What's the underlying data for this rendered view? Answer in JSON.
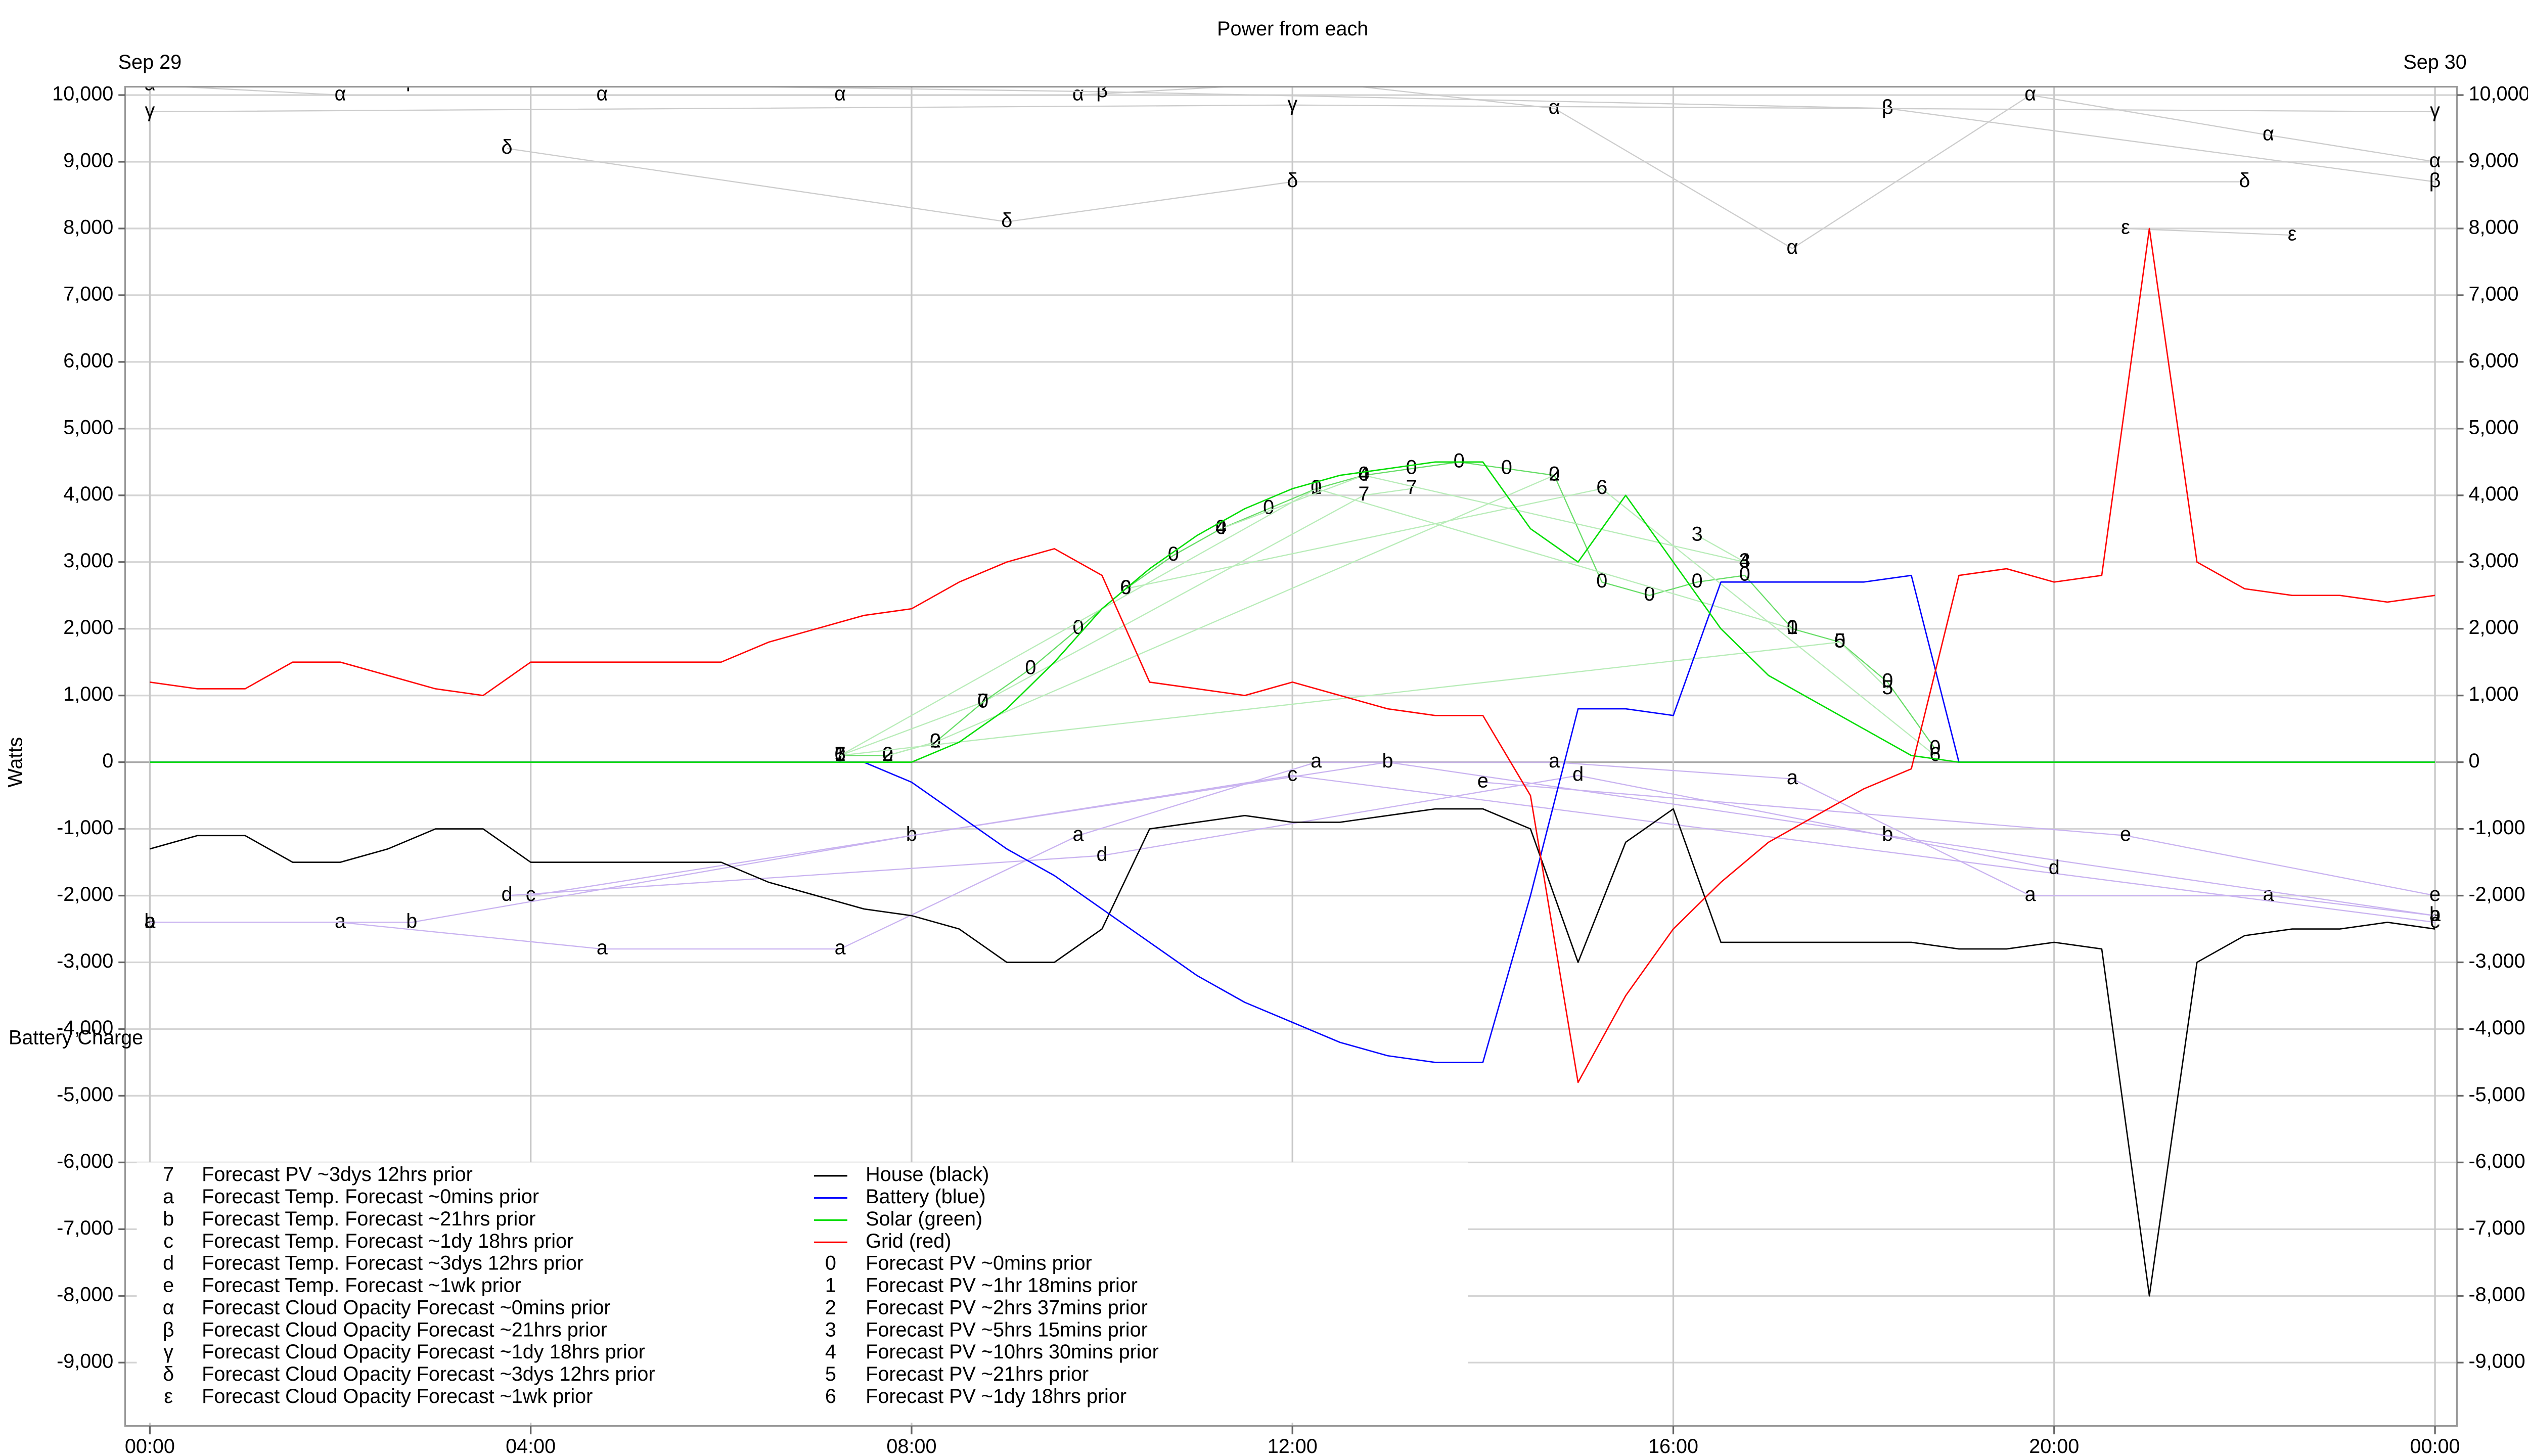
{
  "chart_data": {
    "type": "line",
    "title": "Power from each",
    "y_label": "Watts",
    "date_labels": [
      {
        "text": "Sep 29",
        "x": 0
      },
      {
        "text": "Sep 30",
        "x": 24
      }
    ],
    "annotations": [
      {
        "text": "Battery Charge",
        "x": 0,
        "y": -4150
      }
    ],
    "xlim": [
      -0.26,
      24.23
    ],
    "ylim": [
      -9950,
      10125
    ],
    "xticks": [
      {
        "value": 0,
        "label": "00:00"
      },
      {
        "value": 4,
        "label": "04:00"
      },
      {
        "value": 8,
        "label": "08:00"
      },
      {
        "value": 12,
        "label": "12:00"
      },
      {
        "value": 16,
        "label": "16:00"
      },
      {
        "value": 20,
        "label": "20:00"
      },
      {
        "value": 24,
        "label": "00:00"
      }
    ],
    "yticks": [
      {
        "value": -9000,
        "label": "-9,000"
      },
      {
        "value": -8000,
        "label": "-8,000"
      },
      {
        "value": -7000,
        "label": "-7,000"
      },
      {
        "value": -6000,
        "label": "-6,000"
      },
      {
        "value": -5000,
        "label": "-5,000"
      },
      {
        "value": -4000,
        "label": "-4,000"
      },
      {
        "value": -3000,
        "label": "-3,000"
      },
      {
        "value": -2000,
        "label": "-2,000"
      },
      {
        "value": -1000,
        "label": "-1,000"
      },
      0,
      {
        "value": 1000,
        "label": "1,000"
      },
      {
        "value": 2000,
        "label": "2,000"
      },
      {
        "value": 3000,
        "label": "3,000"
      },
      {
        "value": 4000,
        "label": "4,000"
      },
      {
        "value": 5000,
        "label": "5,000"
      },
      {
        "value": 6000,
        "label": "6,000"
      },
      {
        "value": 7000,
        "label": "7,000"
      },
      {
        "value": 8000,
        "label": "8,000"
      },
      {
        "value": 9000,
        "label": "9,000"
      },
      {
        "value": 10000,
        "label": "10,000"
      }
    ],
    "grid": true,
    "series": [
      {
        "name": "Forecast PV ~3dys 12hrs prior",
        "marker": "7",
        "color": "#b8ecb8",
        "x": [
          7.25,
          8.75,
          12.75,
          13.25
        ],
        "values": [
          100,
          900,
          4000,
          4100
        ]
      },
      {
        "name": "Forecast Temp. Forecast ~0mins prior",
        "marker": "a",
        "color": "#c9b3f0",
        "x": [
          0,
          2,
          4.75,
          7.25,
          9.75,
          12.25,
          14.75,
          17.25,
          19.75,
          22.25,
          24
        ],
        "values": [
          -2400,
          -2400,
          -2800,
          -2800,
          -1100,
          0,
          0,
          -250,
          -2000,
          -2000,
          -2300
        ]
      },
      {
        "name": "Forecast Temp. Forecast ~21hrs prior",
        "marker": "b",
        "color": "#c9b3f0",
        "x": [
          0,
          2.75,
          8,
          13,
          18.25,
          24
        ],
        "values": [
          -2400,
          -2400,
          -1100,
          0,
          -1100,
          -2300
        ]
      },
      {
        "name": "Forecast Temp. Forecast ~1dy 18hrs prior",
        "marker": "c",
        "color": "#c9b3f0",
        "x": [
          4,
          12,
          24
        ],
        "values": [
          -2000,
          -200,
          -2400
        ]
      },
      {
        "name": "Forecast Temp. Forecast ~3dys 12hrs prior",
        "marker": "d",
        "color": "#c9b3f0",
        "x": [
          3.75,
          10,
          15,
          20
        ],
        "values": [
          -2000,
          -1400,
          -200,
          -1600
        ]
      },
      {
        "name": "Forecast Temp. Forecast ~1wk prior",
        "marker": "e",
        "color": "#c9b3f0",
        "x": [
          14,
          20.75,
          24
        ],
        "values": [
          -300,
          -1100,
          -2000
        ]
      },
      {
        "name": "Forecast Cloud Opacity Forecast ~0mins prior",
        "marker": "α",
        "color": "#cccccc",
        "x": [
          0,
          2,
          4.75,
          7.25,
          9.75,
          12.25,
          14.75,
          17.25,
          19.75,
          22.25,
          24
        ],
        "values": [
          10150,
          10000,
          10000,
          10000,
          10000,
          10200,
          9800,
          7700,
          10000,
          9400,
          9000
        ]
      },
      {
        "name": "Forecast Cloud Opacity Forecast ~21hrs prior",
        "marker": "β",
        "color": "#cccccc",
        "x": [
          2.75,
          10,
          18.25,
          24
        ],
        "values": [
          10200,
          10050,
          9800,
          8700
        ]
      },
      {
        "name": "Forecast Cloud Opacity Forecast ~1dy 18hrs prior",
        "marker": "γ",
        "color": "#cccccc",
        "x": [
          0,
          12,
          24
        ],
        "values": [
          9750,
          9850,
          9750
        ]
      },
      {
        "name": "Forecast Cloud Opacity Forecast ~3dys 12hrs prior",
        "marker": "δ",
        "color": "#cccccc",
        "x": [
          3.75,
          9,
          12,
          22
        ],
        "values": [
          9200,
          8100,
          8700,
          8700
        ]
      },
      {
        "name": "Forecast Cloud Opacity Forecast ~1wk prior",
        "marker": "ε",
        "color": "#cccccc",
        "x": [
          20.75,
          22.5
        ],
        "values": [
          8000,
          7900
        ]
      },
      {
        "name": "House (black)",
        "color": "#000000",
        "x": [
          0,
          0.5,
          1,
          1.5,
          2,
          2.5,
          3,
          3.5,
          4,
          4.5,
          5,
          5.5,
          6,
          6.5,
          7,
          7.5,
          8,
          8.5,
          9,
          9.5,
          10,
          10.5,
          11,
          11.5,
          12,
          12.5,
          13,
          13.5,
          14,
          14.5,
          15,
          15.5,
          16,
          16.5,
          17,
          17.5,
          18,
          18.5,
          19,
          19.5,
          20,
          20.5,
          21,
          21.5,
          22,
          22.5,
          23,
          23.5,
          24
        ],
        "values": [
          -1300,
          -1100,
          -1100,
          -1500,
          -1500,
          -1300,
          -1000,
          -1000,
          -1500,
          -1500,
          -1500,
          -1500,
          -1500,
          -1800,
          -2000,
          -2200,
          -2300,
          -2500,
          -3000,
          -3000,
          -2500,
          -1000,
          -900,
          -800,
          -900,
          -900,
          -800,
          -700,
          -700,
          -1000,
          -3000,
          -1200,
          -700,
          -2700,
          -2700,
          -2700,
          -2700,
          -2700,
          -2800,
          -2800,
          -2700,
          -2800,
          -8000,
          -3000,
          -2600,
          -2500,
          -2500,
          -2400,
          -2500
        ]
      },
      {
        "name": "Battery (blue)",
        "color": "#0000ff",
        "x": [
          0,
          0.5,
          1,
          1.5,
          2,
          2.5,
          3,
          3.5,
          4,
          4.5,
          5,
          5.5,
          6,
          6.5,
          7,
          7.5,
          8,
          8.5,
          9,
          9.5,
          10,
          10.5,
          11,
          11.5,
          12,
          12.5,
          13,
          13.5,
          14,
          14.5,
          15,
          15.5,
          16,
          16.5,
          17,
          17.5,
          18,
          18.5,
          19,
          19.5,
          20,
          20.5,
          21,
          21.5,
          22,
          22.5,
          23,
          23.5,
          24
        ],
        "values": [
          0,
          0,
          0,
          0,
          0,
          0,
          0,
          0,
          0,
          0,
          0,
          0,
          0,
          0,
          0,
          0,
          -300,
          -800,
          -1300,
          -1700,
          -2200,
          -2700,
          -3200,
          -3600,
          -3900,
          -4200,
          -4400,
          -4500,
          -4500,
          -2000,
          800,
          800,
          700,
          2700,
          2700,
          2700,
          2700,
          2800,
          0,
          0,
          0,
          0,
          0,
          0,
          0,
          0,
          0,
          0,
          0
        ]
      },
      {
        "name": "Solar (green)",
        "color": "#00dd00",
        "x": [
          0,
          0.5,
          1,
          1.5,
          2,
          2.5,
          3,
          3.5,
          4,
          4.5,
          5,
          5.5,
          6,
          6.5,
          7,
          7.5,
          8,
          8.5,
          9,
          9.5,
          10,
          10.5,
          11,
          11.5,
          12,
          12.5,
          13,
          13.5,
          14,
          14.5,
          15,
          15.5,
          16,
          16.5,
          17,
          17.5,
          18,
          18.5,
          19,
          19.5,
          20,
          20.5,
          21,
          21.5,
          22,
          22.5,
          23,
          23.5,
          24
        ],
        "values": [
          0,
          0,
          0,
          0,
          0,
          0,
          0,
          0,
          0,
          0,
          0,
          0,
          0,
          0,
          0,
          0,
          0,
          300,
          800,
          1500,
          2300,
          2900,
          3400,
          3800,
          4100,
          4300,
          4400,
          4500,
          4500,
          3500,
          3000,
          4000,
          3000,
          2000,
          1300,
          900,
          500,
          100,
          0,
          0,
          0,
          0,
          0,
          0,
          0,
          0,
          0,
          0,
          0
        ]
      },
      {
        "name": "Grid (red)",
        "color": "#ff0000",
        "x": [
          0,
          0.5,
          1,
          1.5,
          2,
          2.5,
          3,
          3.5,
          4,
          4.5,
          5,
          5.5,
          6,
          6.5,
          7,
          7.5,
          8,
          8.5,
          9,
          9.5,
          10,
          10.5,
          11,
          11.5,
          12,
          12.5,
          13,
          13.5,
          14,
          14.5,
          15,
          15.5,
          16,
          16.5,
          17,
          17.5,
          18,
          18.5,
          19,
          19.5,
          20,
          20.5,
          21,
          21.5,
          22,
          22.5,
          23,
          23.5,
          24
        ],
        "values": [
          1200,
          1100,
          1100,
          1500,
          1500,
          1300,
          1100,
          1000,
          1500,
          1500,
          1500,
          1500,
          1500,
          1800,
          2000,
          2200,
          2300,
          2700,
          3000,
          3200,
          2800,
          1200,
          1100,
          1000,
          1200,
          1000,
          800,
          700,
          700,
          -500,
          -4800,
          -3500,
          -2500,
          -1800,
          -1200,
          -800,
          -400,
          -100,
          2800,
          2900,
          2700,
          2800,
          8000,
          3000,
          2600,
          2500,
          2500,
          2400,
          2500
        ]
      },
      {
        "name": "Forecast PV ~0mins prior",
        "marker": "0",
        "color": "#66dd66",
        "x": [
          7.25,
          7.75,
          8.25,
          8.75,
          9.25,
          9.75,
          10.25,
          10.75,
          11.25,
          11.75,
          12.25,
          12.75,
          13.25,
          13.75,
          14.25,
          14.75,
          15.25,
          15.75,
          16.25,
          16.75,
          17.25,
          17.75,
          18.25,
          18.75
        ],
        "values": [
          100,
          100,
          300,
          900,
          1400,
          2000,
          2600,
          3100,
          3500,
          3800,
          4100,
          4300,
          4400,
          4500,
          4400,
          4300,
          2700,
          2500,
          2700,
          2800,
          2000,
          1800,
          1200,
          200
        ]
      },
      {
        "name": "Forecast PV ~1hr 18mins prior",
        "marker": "1",
        "color": "#b8ecb8",
        "x": [
          7.25,
          12.25,
          17.25
        ],
        "values": [
          100,
          4100,
          2000
        ]
      },
      {
        "name": "Forecast PV ~2hrs 37mins prior",
        "marker": "2",
        "color": "#b8ecb8",
        "x": [
          7.75,
          8.25,
          14.75
        ],
        "values": [
          100,
          300,
          4300
        ]
      },
      {
        "name": "Forecast PV ~5hrs 15mins prior",
        "marker": "3",
        "color": "#b8ecb8",
        "x": [
          16.25,
          16.75
        ],
        "values": [
          3400,
          3000
        ]
      },
      {
        "name": "Forecast PV ~10hrs 30mins prior",
        "marker": "4",
        "color": "#b8ecb8",
        "x": [
          11.25,
          12.75,
          16.75
        ],
        "values": [
          3500,
          4300,
          3000
        ]
      },
      {
        "name": "Forecast PV ~21hrs prior",
        "marker": "5",
        "color": "#b8ecb8",
        "x": [
          7.25,
          17.75,
          18.25
        ],
        "values": [
          100,
          1800,
          1100
        ]
      },
      {
        "name": "Forecast PV ~1dy 18hrs prior",
        "marker": "6",
        "color": "#b8ecb8",
        "x": [
          10.25,
          15.25,
          18.75
        ],
        "values": [
          2600,
          4100,
          100
        ]
      }
    ]
  }
}
